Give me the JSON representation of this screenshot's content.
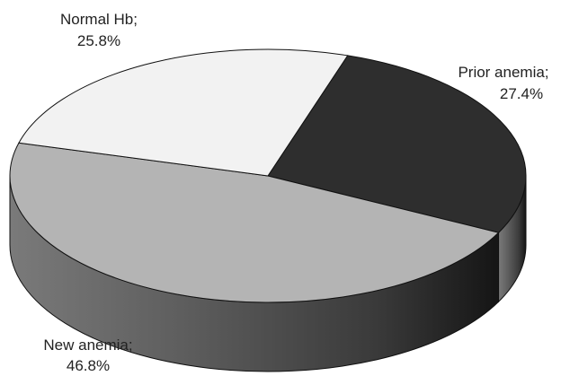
{
  "chart_data": {
    "type": "pie",
    "style": "3d",
    "slices": [
      {
        "label": "Prior anemia;",
        "percent_label": "27.4%",
        "value": 27.4,
        "color": "#2e2e2e"
      },
      {
        "label": "New anemia;",
        "percent_label": "46.8%",
        "value": 46.8,
        "color": "#b4b4b4"
      },
      {
        "label": "Normal Hb;",
        "percent_label": "25.8%",
        "value": 25.8,
        "color": "#f2f2f2"
      }
    ],
    "legend": "none"
  }
}
